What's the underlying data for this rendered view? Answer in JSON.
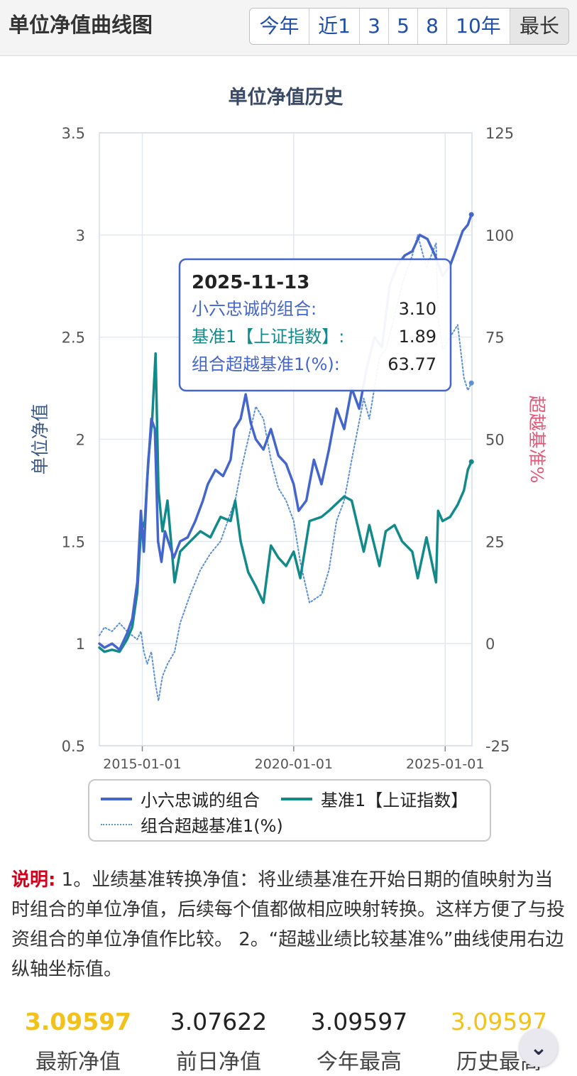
{
  "header": {
    "title": "单位净值曲线图",
    "ranges": [
      "今年",
      "近1",
      "3",
      "5",
      "8",
      "10年",
      "最长"
    ],
    "active_range": "最长"
  },
  "colors": {
    "portfolio": "#4466cc",
    "benchmark": "#138a8a",
    "excess": "#5b8fd6",
    "left_axis_title": "#3b5a88",
    "right_axis_title": "#e05a78",
    "highlight_value": "#f2c21b",
    "note_label": "#d0021b"
  },
  "chart_data": {
    "type": "line",
    "title": "单位净值历史",
    "ylabel": "单位净值",
    "y2label": "超越基准%",
    "ylim": [
      0.5,
      3.5
    ],
    "y_ticks": [
      "3.5",
      "3",
      "2.5",
      "2",
      "1.5",
      "1",
      "0.5"
    ],
    "y2lim": [
      -25,
      125
    ],
    "y2_ticks": [
      "125",
      "100",
      "75",
      "50",
      "25",
      "0",
      "-25"
    ],
    "xlim": [
      "2013-08-01",
      "2025-11-20"
    ],
    "x_ticks": [
      "2015-01-01",
      "2020-01-01",
      "2025-01-01"
    ],
    "grid": true,
    "legend_position": "bottom",
    "series": [
      {
        "name": "小六忠诚的组合",
        "axis": "left",
        "points": [
          [
            "2013-08-01",
            1.0
          ],
          [
            "2013-10-01",
            0.98
          ],
          [
            "2014-01-01",
            1.0
          ],
          [
            "2014-04-01",
            0.97
          ],
          [
            "2014-07-01",
            1.05
          ],
          [
            "2014-09-01",
            1.12
          ],
          [
            "2014-11-01",
            1.3
          ],
          [
            "2014-12-15",
            1.65
          ],
          [
            "2015-01-20",
            1.45
          ],
          [
            "2015-03-01",
            1.8
          ],
          [
            "2015-04-20",
            2.1
          ],
          [
            "2015-06-01",
            2.05
          ],
          [
            "2015-07-10",
            1.5
          ],
          [
            "2015-08-20",
            1.4
          ],
          [
            "2015-10-01",
            1.55
          ],
          [
            "2016-01-15",
            1.42
          ],
          [
            "2016-04-01",
            1.5
          ],
          [
            "2016-07-01",
            1.52
          ],
          [
            "2016-10-01",
            1.6
          ],
          [
            "2017-01-01",
            1.7
          ],
          [
            "2017-03-01",
            1.78
          ],
          [
            "2017-06-01",
            1.85
          ],
          [
            "2017-09-01",
            1.82
          ],
          [
            "2017-12-01",
            1.9
          ],
          [
            "2018-01-15",
            2.05
          ],
          [
            "2018-04-01",
            2.1
          ],
          [
            "2018-06-01",
            2.22
          ],
          [
            "2018-08-01",
            2.08
          ],
          [
            "2018-10-01",
            2.0
          ],
          [
            "2019-01-01",
            1.95
          ],
          [
            "2019-04-01",
            2.05
          ],
          [
            "2019-07-01",
            1.92
          ],
          [
            "2019-10-01",
            1.88
          ],
          [
            "2020-01-01",
            1.78
          ],
          [
            "2020-03-01",
            1.65
          ],
          [
            "2020-06-01",
            1.7
          ],
          [
            "2020-09-01",
            1.9
          ],
          [
            "2020-12-01",
            1.78
          ],
          [
            "2021-03-01",
            1.95
          ],
          [
            "2021-06-01",
            2.15
          ],
          [
            "2021-09-01",
            2.05
          ],
          [
            "2021-12-01",
            2.25
          ],
          [
            "2022-03-01",
            2.15
          ],
          [
            "2022-06-01",
            2.35
          ],
          [
            "2022-09-01",
            2.5
          ],
          [
            "2022-12-01",
            2.45
          ],
          [
            "2023-03-01",
            2.75
          ],
          [
            "2023-06-01",
            2.85
          ],
          [
            "2023-09-01",
            2.9
          ],
          [
            "2023-12-01",
            2.92
          ],
          [
            "2024-03-01",
            3.0
          ],
          [
            "2024-06-01",
            2.98
          ],
          [
            "2024-09-01",
            2.9
          ],
          [
            "2024-12-01",
            2.8
          ],
          [
            "2025-03-01",
            2.85
          ],
          [
            "2025-06-01",
            2.95
          ],
          [
            "2025-08-01",
            3.02
          ],
          [
            "2025-10-01",
            3.05
          ],
          [
            "2025-11-13",
            3.1
          ]
        ]
      },
      {
        "name": "基准1【上证指数】",
        "axis": "left",
        "points": [
          [
            "2013-08-01",
            0.98
          ],
          [
            "2013-10-01",
            0.96
          ],
          [
            "2014-01-01",
            0.97
          ],
          [
            "2014-04-01",
            0.96
          ],
          [
            "2014-07-01",
            1.02
          ],
          [
            "2014-09-01",
            1.08
          ],
          [
            "2014-11-01",
            1.25
          ],
          [
            "2014-12-15",
            1.55
          ],
          [
            "2015-02-01",
            1.6
          ],
          [
            "2015-03-15",
            1.9
          ],
          [
            "2015-05-01",
            2.1
          ],
          [
            "2015-06-10",
            2.42
          ],
          [
            "2015-07-15",
            1.75
          ],
          [
            "2015-09-01",
            1.55
          ],
          [
            "2015-11-01",
            1.7
          ],
          [
            "2016-01-25",
            1.3
          ],
          [
            "2016-04-01",
            1.45
          ],
          [
            "2016-08-01",
            1.5
          ],
          [
            "2016-12-01",
            1.55
          ],
          [
            "2017-04-01",
            1.52
          ],
          [
            "2017-08-01",
            1.62
          ],
          [
            "2017-12-01",
            1.6
          ],
          [
            "2018-01-25",
            1.7
          ],
          [
            "2018-04-01",
            1.5
          ],
          [
            "2018-07-01",
            1.35
          ],
          [
            "2018-10-01",
            1.28
          ],
          [
            "2019-01-01",
            1.2
          ],
          [
            "2019-04-01",
            1.48
          ],
          [
            "2019-07-01",
            1.42
          ],
          [
            "2019-10-01",
            1.38
          ],
          [
            "2020-01-01",
            1.45
          ],
          [
            "2020-03-20",
            1.32
          ],
          [
            "2020-07-10",
            1.6
          ],
          [
            "2020-12-01",
            1.62
          ],
          [
            "2021-03-01",
            1.65
          ],
          [
            "2021-09-01",
            1.72
          ],
          [
            "2021-12-01",
            1.7
          ],
          [
            "2022-04-25",
            1.45
          ],
          [
            "2022-07-01",
            1.58
          ],
          [
            "2022-10-31",
            1.38
          ],
          [
            "2023-01-15",
            1.55
          ],
          [
            "2023-05-01",
            1.58
          ],
          [
            "2023-08-01",
            1.5
          ],
          [
            "2023-12-01",
            1.45
          ],
          [
            "2024-02-05",
            1.32
          ],
          [
            "2024-05-20",
            1.52
          ],
          [
            "2024-09-13",
            1.3
          ],
          [
            "2024-10-08",
            1.65
          ],
          [
            "2024-12-01",
            1.6
          ],
          [
            "2025-03-01",
            1.62
          ],
          [
            "2025-06-01",
            1.68
          ],
          [
            "2025-08-15",
            1.75
          ],
          [
            "2025-10-01",
            1.85
          ],
          [
            "2025-11-13",
            1.89
          ]
        ]
      },
      {
        "name": "组合超越基准1(%)",
        "axis": "right",
        "points": [
          [
            "2013-08-01",
            2
          ],
          [
            "2013-10-01",
            4
          ],
          [
            "2014-01-01",
            3
          ],
          [
            "2014-04-01",
            5
          ],
          [
            "2014-07-01",
            3
          ],
          [
            "2014-09-01",
            2
          ],
          [
            "2014-11-01",
            1
          ],
          [
            "2014-12-15",
            3
          ],
          [
            "2015-01-20",
            -2
          ],
          [
            "2015-03-01",
            -5
          ],
          [
            "2015-04-20",
            -2
          ],
          [
            "2015-06-10",
            -10
          ],
          [
            "2015-07-15",
            -14
          ],
          [
            "2015-09-01",
            -8
          ],
          [
            "2015-11-01",
            -5
          ],
          [
            "2016-01-25",
            -2
          ],
          [
            "2016-04-01",
            5
          ],
          [
            "2016-08-01",
            12
          ],
          [
            "2016-12-01",
            18
          ],
          [
            "2017-04-01",
            22
          ],
          [
            "2017-08-01",
            25
          ],
          [
            "2017-12-01",
            32
          ],
          [
            "2018-01-25",
            35
          ],
          [
            "2018-04-01",
            42
          ],
          [
            "2018-07-01",
            50
          ],
          [
            "2018-10-01",
            58
          ],
          [
            "2019-01-01",
            55
          ],
          [
            "2019-04-01",
            45
          ],
          [
            "2019-07-01",
            38
          ],
          [
            "2019-10-01",
            35
          ],
          [
            "2020-01-01",
            30
          ],
          [
            "2020-03-20",
            20
          ],
          [
            "2020-07-10",
            10
          ],
          [
            "2020-12-01",
            12
          ],
          [
            "2021-03-01",
            18
          ],
          [
            "2021-06-01",
            30
          ],
          [
            "2021-09-01",
            35
          ],
          [
            "2021-12-01",
            45
          ],
          [
            "2022-04-25",
            60
          ],
          [
            "2022-07-01",
            55
          ],
          [
            "2022-10-31",
            70
          ],
          [
            "2023-01-15",
            72
          ],
          [
            "2023-05-01",
            80
          ],
          [
            "2023-08-01",
            88
          ],
          [
            "2023-12-01",
            95
          ],
          [
            "2024-02-05",
            100
          ],
          [
            "2024-05-20",
            92
          ],
          [
            "2024-09-13",
            98
          ],
          [
            "2024-10-08",
            80
          ],
          [
            "2024-12-01",
            72
          ],
          [
            "2025-03-01",
            75
          ],
          [
            "2025-06-01",
            78
          ],
          [
            "2025-08-15",
            65
          ],
          [
            "2025-10-01",
            62
          ],
          [
            "2025-11-13",
            63.77
          ]
        ]
      }
    ],
    "tooltip": {
      "date": "2025-11-13",
      "rows": [
        {
          "label": "小六忠诚的组合:",
          "value": "3.10"
        },
        {
          "label": "基准1【上证指数】:",
          "value": "1.89"
        },
        {
          "label": "组合超越基准1(%):",
          "value": "63.77"
        }
      ]
    }
  },
  "note": {
    "label": "说明:",
    "text": "1。业绩基准转换净值：将业绩基准在开始日期的值映射为当时组合的单位净值，后续每个值都做相应映射转换。这样方便了与投资组合的单位净值作比较。 2。“超越业绩比较基准%”曲线使用右边纵轴坐标值。"
  },
  "stats": [
    {
      "value": "3.09597",
      "label": "最新净值",
      "highlight": true
    },
    {
      "value": "3.07622",
      "label": "前日净值",
      "highlight": false
    },
    {
      "value": "3.09597",
      "label": "今年最高",
      "highlight": false
    },
    {
      "value": "3.09597",
      "label": "历史最高",
      "highlight": true
    }
  ],
  "floating_button": {
    "icon": "chevron-down-icon"
  }
}
